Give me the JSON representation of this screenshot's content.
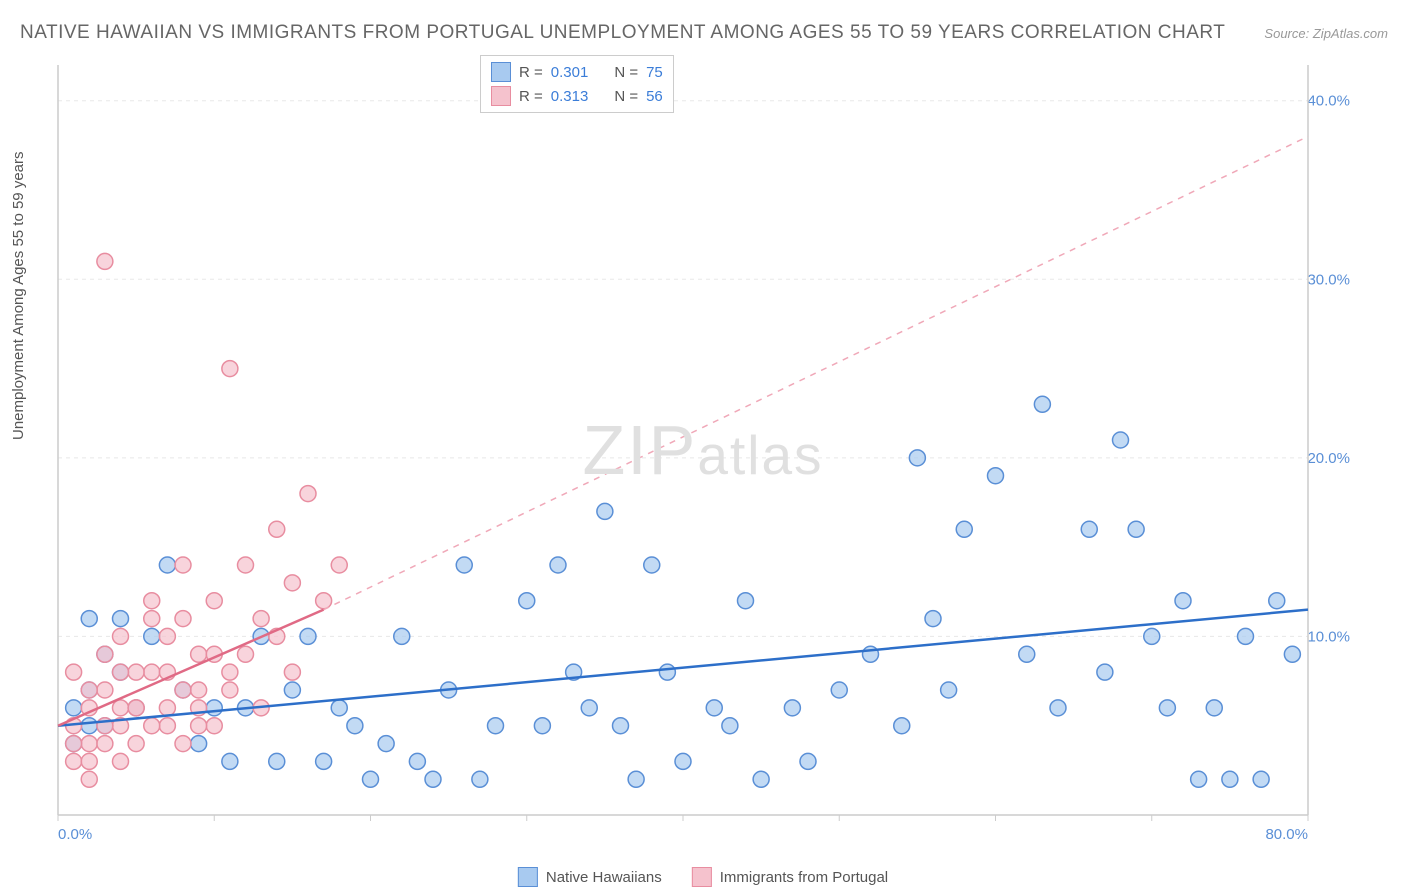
{
  "title": "NATIVE HAWAIIAN VS IMMIGRANTS FROM PORTUGAL UNEMPLOYMENT AMONG AGES 55 TO 59 YEARS CORRELATION CHART",
  "source_label": "Source:",
  "source_value": "ZipAtlas.com",
  "y_axis_title": "Unemployment Among Ages 55 to 59 years",
  "watermark": "ZIPatlas",
  "chart": {
    "type": "scatter",
    "background_color": "#ffffff",
    "grid_color": "#e8e8e8",
    "axis_color": "#cccccc",
    "xlim": [
      0,
      80
    ],
    "ylim": [
      0,
      42
    ],
    "x_ticks": [
      0,
      10,
      20,
      30,
      40,
      50,
      60,
      70,
      80
    ],
    "x_tick_labels": [
      "0.0%",
      "",
      "",
      "",
      "",
      "",
      "",
      "",
      "80.0%"
    ],
    "y_ticks": [
      10,
      20,
      30,
      40
    ],
    "y_tick_labels": [
      "10.0%",
      "20.0%",
      "30.0%",
      "40.0%"
    ],
    "marker_radius": 8,
    "marker_stroke_width": 1.5,
    "series": [
      {
        "name": "Native Hawaiians",
        "fill_color": "#a8caf0",
        "stroke_color": "#5a8fd6",
        "opacity": 0.7,
        "trend": {
          "x1": 0,
          "y1": 5.0,
          "x2": 80,
          "y2": 11.5,
          "color": "#2d6fc9",
          "width": 2.5,
          "dash": "none"
        },
        "points": [
          [
            1,
            6
          ],
          [
            2,
            7
          ],
          [
            3,
            5
          ],
          [
            2,
            11
          ],
          [
            4,
            8
          ],
          [
            1,
            4
          ],
          [
            3,
            9
          ],
          [
            5,
            6
          ],
          [
            2,
            5
          ],
          [
            4,
            11
          ],
          [
            6,
            10
          ],
          [
            8,
            7
          ],
          [
            10,
            6
          ],
          [
            7,
            14
          ],
          [
            9,
            4
          ],
          [
            11,
            3
          ],
          [
            12,
            6
          ],
          [
            13,
            10
          ],
          [
            15,
            7
          ],
          [
            14,
            3
          ],
          [
            16,
            10
          ],
          [
            18,
            6
          ],
          [
            17,
            3
          ],
          [
            19,
            5
          ],
          [
            20,
            2
          ],
          [
            21,
            4
          ],
          [
            22,
            10
          ],
          [
            23,
            3
          ],
          [
            25,
            7
          ],
          [
            24,
            2
          ],
          [
            26,
            14
          ],
          [
            28,
            5
          ],
          [
            27,
            2
          ],
          [
            30,
            12
          ],
          [
            32,
            14
          ],
          [
            31,
            5
          ],
          [
            33,
            8
          ],
          [
            35,
            17
          ],
          [
            34,
            6
          ],
          [
            37,
            2
          ],
          [
            38,
            14
          ],
          [
            36,
            5
          ],
          [
            39,
            8
          ],
          [
            40,
            3
          ],
          [
            42,
            6
          ],
          [
            44,
            12
          ],
          [
            43,
            5
          ],
          [
            45,
            2
          ],
          [
            47,
            6
          ],
          [
            48,
            3
          ],
          [
            50,
            7
          ],
          [
            52,
            9
          ],
          [
            54,
            5
          ],
          [
            56,
            11
          ],
          [
            55,
            20
          ],
          [
            58,
            16
          ],
          [
            57,
            7
          ],
          [
            60,
            19
          ],
          [
            62,
            9
          ],
          [
            64,
            6
          ],
          [
            63,
            23
          ],
          [
            66,
            16
          ],
          [
            68,
            21
          ],
          [
            67,
            8
          ],
          [
            70,
            10
          ],
          [
            69,
            16
          ],
          [
            72,
            12
          ],
          [
            74,
            6
          ],
          [
            73,
            2
          ],
          [
            76,
            10
          ],
          [
            78,
            12
          ],
          [
            77,
            2
          ],
          [
            79,
            9
          ],
          [
            75,
            2
          ],
          [
            71,
            6
          ]
        ]
      },
      {
        "name": "Immigrants from Portugal",
        "fill_color": "#f5c2cd",
        "stroke_color": "#e88da0",
        "opacity": 0.7,
        "trend": {
          "x1": 0,
          "y1": 5.0,
          "x2": 17,
          "y2": 11.5,
          "color": "#e06a85",
          "width": 2.5,
          "dash": "none"
        },
        "trend_ext": {
          "x1": 17,
          "y1": 11.5,
          "x2": 80,
          "y2": 38.0,
          "color": "#f0a8b8",
          "width": 1.5,
          "dash": "6,6"
        },
        "points": [
          [
            1,
            5
          ],
          [
            2,
            6
          ],
          [
            1,
            8
          ],
          [
            3,
            7
          ],
          [
            2,
            4
          ],
          [
            1,
            3
          ],
          [
            4,
            5
          ],
          [
            3,
            9
          ],
          [
            2,
            7
          ],
          [
            5,
            6
          ],
          [
            4,
            10
          ],
          [
            6,
            8
          ],
          [
            3,
            5
          ],
          [
            7,
            6
          ],
          [
            5,
            4
          ],
          [
            8,
            7
          ],
          [
            6,
            11
          ],
          [
            9,
            9
          ],
          [
            7,
            5
          ],
          [
            10,
            12
          ],
          [
            8,
            4
          ],
          [
            11,
            8
          ],
          [
            9,
            6
          ],
          [
            12,
            14
          ],
          [
            10,
            5
          ],
          [
            13,
            11
          ],
          [
            11,
            7
          ],
          [
            14,
            16
          ],
          [
            12,
            9
          ],
          [
            15,
            13
          ],
          [
            13,
            6
          ],
          [
            16,
            18
          ],
          [
            14,
            10
          ],
          [
            17,
            12
          ],
          [
            15,
            8
          ],
          [
            18,
            14
          ],
          [
            3,
            31
          ],
          [
            6,
            12
          ],
          [
            8,
            14
          ],
          [
            4,
            6
          ],
          [
            2,
            3
          ],
          [
            5,
            8
          ],
          [
            7,
            10
          ],
          [
            9,
            7
          ],
          [
            11,
            25
          ],
          [
            10,
            9
          ],
          [
            6,
            5
          ],
          [
            8,
            11
          ],
          [
            4,
            8
          ],
          [
            3,
            4
          ],
          [
            5,
            6
          ],
          [
            7,
            8
          ],
          [
            9,
            5
          ],
          [
            2,
            2
          ],
          [
            1,
            4
          ],
          [
            4,
            3
          ]
        ]
      }
    ],
    "stats_legend": [
      {
        "swatch_fill": "#a8caf0",
        "swatch_stroke": "#5a8fd6",
        "r_label": "R =",
        "r_value": "0.301",
        "n_label": "N =",
        "n_value": "75"
      },
      {
        "swatch_fill": "#f5c2cd",
        "swatch_stroke": "#e88da0",
        "r_label": "R =",
        "r_value": "0.313",
        "n_label": "N =",
        "n_value": "56"
      }
    ],
    "bottom_legend": [
      {
        "swatch_fill": "#a8caf0",
        "swatch_stroke": "#5a8fd6",
        "label": "Native Hawaiians"
      },
      {
        "swatch_fill": "#f5c2cd",
        "swatch_stroke": "#e88da0",
        "label": "Immigrants from Portugal"
      }
    ]
  }
}
